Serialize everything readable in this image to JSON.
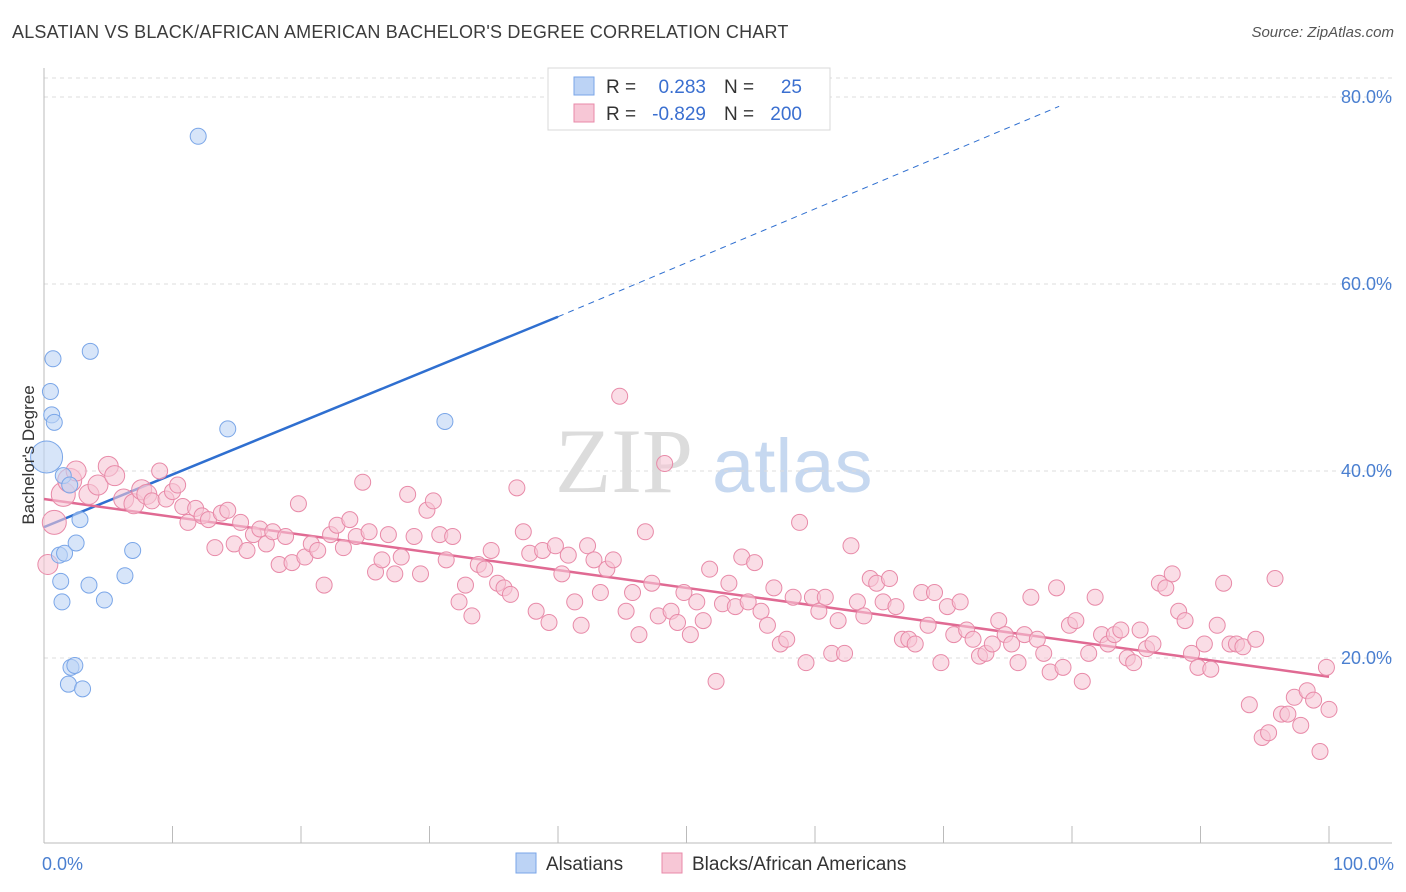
{
  "title": "ALSATIAN VS BLACK/AFRICAN AMERICAN BACHELOR'S DEGREE CORRELATION CHART",
  "source": "Source: ZipAtlas.com",
  "watermark": {
    "zip": "ZIP",
    "atlas": "atlas"
  },
  "legend": {
    "series1": {
      "r_label": "R =",
      "r_value": "0.283",
      "n_label": "N =",
      "n_value": "25"
    },
    "series2": {
      "r_label": "R =",
      "r_value": "-0.829",
      "n_label": "N =",
      "n_value": "200"
    }
  },
  "colors": {
    "blue": "#7aa6e8",
    "blue_fill": "#bcd3f5",
    "blue_line": "#2f6fd0",
    "pink": "#e88aa8",
    "pink_fill": "#f7c7d6",
    "pink_line": "#e06a93"
  },
  "chart_data": {
    "type": "scatter",
    "title": "ALSATIAN VS BLACK/AFRICAN AMERICAN BACHELOR'S DEGREE CORRELATION CHART",
    "xlabel": "",
    "ylabel": "Bachelor's Degree",
    "xlim": [
      0,
      100
    ],
    "ylim": [
      0,
      82
    ],
    "x_tick_labels": [
      "0.0%",
      "100.0%"
    ],
    "y_ticks": [
      20,
      40,
      60,
      80
    ],
    "y_tick_labels": [
      "20.0%",
      "40.0%",
      "60.0%",
      "80.0%"
    ],
    "legend_position": "bottom",
    "series": [
      {
        "name": "Alsatians",
        "trend": {
          "x0": 0,
          "y0": 34.0,
          "x1": 40,
          "y1": 56.5,
          "dash_to_x": 79,
          "dash_to_y": 79.0
        },
        "points": [
          [
            0.2,
            41.5,
            16
          ],
          [
            0.5,
            48.5,
            8
          ],
          [
            0.6,
            46,
            8
          ],
          [
            0.8,
            45.2,
            8
          ],
          [
            0.7,
            52.0,
            8
          ],
          [
            1.5,
            39.5,
            8
          ],
          [
            2.0,
            38.5,
            8
          ],
          [
            3.6,
            52.8,
            8
          ],
          [
            1.2,
            31.0,
            8
          ],
          [
            1.6,
            31.2,
            8
          ],
          [
            2.5,
            32.3,
            8
          ],
          [
            2.8,
            34.8,
            8
          ],
          [
            1.3,
            28.2,
            8
          ],
          [
            1.4,
            26.0,
            8
          ],
          [
            3.5,
            27.8,
            8
          ],
          [
            4.7,
            26.2,
            8
          ],
          [
            6.3,
            28.8,
            8
          ],
          [
            6.9,
            31.5,
            8
          ],
          [
            2.1,
            19.0,
            8
          ],
          [
            2.4,
            19.2,
            8
          ],
          [
            1.9,
            17.2,
            8
          ],
          [
            3.0,
            16.7,
            8
          ],
          [
            12.0,
            75.8,
            8
          ],
          [
            14.3,
            44.5,
            8
          ],
          [
            31.2,
            45.3,
            8
          ]
        ]
      },
      {
        "name": "Blacks/African Americans",
        "trend": {
          "x0": 0,
          "y0": 37.0,
          "x1": 100,
          "y1": 18.0
        },
        "points": [
          [
            0.3,
            30.0,
            10
          ],
          [
            0.8,
            34.5,
            12
          ],
          [
            1.5,
            37.5,
            12
          ],
          [
            2.0,
            39.0,
            12
          ],
          [
            2.5,
            40.0,
            10
          ],
          [
            3.5,
            37.5,
            10
          ],
          [
            4.2,
            38.5,
            10
          ],
          [
            5.0,
            40.5,
            10
          ],
          [
            5.5,
            39.5,
            10
          ],
          [
            6.2,
            37.0,
            10
          ],
          [
            7.0,
            36.5,
            10
          ],
          [
            7.6,
            38.0,
            10
          ],
          [
            8.0,
            37.5,
            10
          ],
          [
            8.4,
            36.8,
            8
          ],
          [
            9.0,
            40.0,
            8
          ],
          [
            9.5,
            37.0,
            8
          ],
          [
            10.0,
            37.8,
            8
          ],
          [
            10.4,
            38.5,
            8
          ],
          [
            10.8,
            36.2,
            8
          ],
          [
            11.2,
            34.5,
            8
          ],
          [
            11.8,
            36.0,
            8
          ],
          [
            12.3,
            35.2,
            8
          ],
          [
            12.8,
            34.8,
            8
          ],
          [
            13.3,
            31.8,
            8
          ],
          [
            13.8,
            35.5,
            8
          ],
          [
            14.3,
            35.8,
            8
          ],
          [
            14.8,
            32.2,
            8
          ],
          [
            15.3,
            34.5,
            8
          ],
          [
            15.8,
            31.5,
            8
          ],
          [
            16.3,
            33.2,
            8
          ],
          [
            16.8,
            33.8,
            8
          ],
          [
            17.3,
            32.2,
            8
          ],
          [
            17.8,
            33.5,
            8
          ],
          [
            18.3,
            30.0,
            8
          ],
          [
            18.8,
            33.0,
            8
          ],
          [
            19.3,
            30.2,
            8
          ],
          [
            19.8,
            36.5,
            8
          ],
          [
            20.3,
            30.8,
            8
          ],
          [
            20.8,
            32.2,
            8
          ],
          [
            21.3,
            31.5,
            8
          ],
          [
            21.8,
            27.8,
            8
          ],
          [
            22.3,
            33.2,
            8
          ],
          [
            22.8,
            34.2,
            8
          ],
          [
            23.3,
            31.8,
            8
          ],
          [
            23.8,
            34.8,
            8
          ],
          [
            24.3,
            33.0,
            8
          ],
          [
            24.8,
            38.8,
            8
          ],
          [
            25.3,
            33.5,
            8
          ],
          [
            25.8,
            29.2,
            8
          ],
          [
            26.3,
            30.5,
            8
          ],
          [
            26.8,
            33.2,
            8
          ],
          [
            27.3,
            29.0,
            8
          ],
          [
            27.8,
            30.8,
            8
          ],
          [
            28.3,
            37.5,
            8
          ],
          [
            28.8,
            33.0,
            8
          ],
          [
            29.3,
            29.0,
            8
          ],
          [
            29.8,
            35.8,
            8
          ],
          [
            30.3,
            36.8,
            8
          ],
          [
            30.8,
            33.2,
            8
          ],
          [
            31.3,
            30.5,
            8
          ],
          [
            31.8,
            33.0,
            8
          ],
          [
            32.3,
            26.0,
            8
          ],
          [
            32.8,
            27.8,
            8
          ],
          [
            33.3,
            24.5,
            8
          ],
          [
            33.8,
            30.0,
            8
          ],
          [
            34.3,
            29.5,
            8
          ],
          [
            34.8,
            31.5,
            8
          ],
          [
            35.3,
            28.0,
            8
          ],
          [
            35.8,
            27.5,
            8
          ],
          [
            36.3,
            26.8,
            8
          ],
          [
            36.8,
            38.2,
            8
          ],
          [
            37.3,
            33.5,
            8
          ],
          [
            37.8,
            31.2,
            8
          ],
          [
            38.3,
            25.0,
            8
          ],
          [
            38.8,
            31.5,
            8
          ],
          [
            39.3,
            23.8,
            8
          ],
          [
            39.8,
            32.0,
            8
          ],
          [
            40.3,
            29.0,
            8
          ],
          [
            40.8,
            31.0,
            8
          ],
          [
            41.3,
            26.0,
            8
          ],
          [
            41.8,
            23.5,
            8
          ],
          [
            42.3,
            32.0,
            8
          ],
          [
            42.8,
            30.5,
            8
          ],
          [
            43.3,
            27.0,
            8
          ],
          [
            43.8,
            29.5,
            8
          ],
          [
            44.3,
            30.5,
            8
          ],
          [
            44.8,
            48.0,
            8
          ],
          [
            45.3,
            25.0,
            8
          ],
          [
            45.8,
            27.0,
            8
          ],
          [
            46.3,
            22.5,
            8
          ],
          [
            46.8,
            33.5,
            8
          ],
          [
            47.3,
            28.0,
            8
          ],
          [
            47.8,
            24.5,
            8
          ],
          [
            48.3,
            40.8,
            8
          ],
          [
            48.8,
            25.0,
            8
          ],
          [
            49.3,
            23.8,
            8
          ],
          [
            49.8,
            27.0,
            8
          ],
          [
            50.3,
            22.5,
            8
          ],
          [
            50.8,
            26.0,
            8
          ],
          [
            51.3,
            24.0,
            8
          ],
          [
            51.8,
            29.5,
            8
          ],
          [
            52.3,
            17.5,
            8
          ],
          [
            52.8,
            25.8,
            8
          ],
          [
            53.3,
            28.0,
            8
          ],
          [
            53.8,
            25.5,
            8
          ],
          [
            54.3,
            30.8,
            8
          ],
          [
            54.8,
            26.0,
            8
          ],
          [
            55.3,
            30.2,
            8
          ],
          [
            55.8,
            25.0,
            8
          ],
          [
            56.3,
            23.5,
            8
          ],
          [
            56.8,
            27.5,
            8
          ],
          [
            57.3,
            21.5,
            8
          ],
          [
            57.8,
            22.0,
            8
          ],
          [
            58.3,
            26.5,
            8
          ],
          [
            58.8,
            34.5,
            8
          ],
          [
            59.3,
            19.5,
            8
          ],
          [
            59.8,
            26.5,
            8
          ],
          [
            60.3,
            25.0,
            8
          ],
          [
            60.8,
            26.5,
            8
          ],
          [
            61.3,
            20.5,
            8
          ],
          [
            61.8,
            24.0,
            8
          ],
          [
            62.3,
            20.5,
            8
          ],
          [
            62.8,
            32.0,
            8
          ],
          [
            63.3,
            26.0,
            8
          ],
          [
            63.8,
            24.5,
            8
          ],
          [
            64.3,
            28.5,
            8
          ],
          [
            64.8,
            28.0,
            8
          ],
          [
            65.3,
            26.0,
            8
          ],
          [
            65.8,
            28.5,
            8
          ],
          [
            66.3,
            25.5,
            8
          ],
          [
            66.8,
            22.0,
            8
          ],
          [
            67.3,
            22.0,
            8
          ],
          [
            67.8,
            21.5,
            8
          ],
          [
            68.3,
            27.0,
            8
          ],
          [
            68.8,
            23.5,
            8
          ],
          [
            69.3,
            27.0,
            8
          ],
          [
            69.8,
            19.5,
            8
          ],
          [
            70.3,
            25.5,
            8
          ],
          [
            70.8,
            22.5,
            8
          ],
          [
            71.3,
            26.0,
            8
          ],
          [
            71.8,
            23.0,
            8
          ],
          [
            72.3,
            22.0,
            8
          ],
          [
            72.8,
            20.2,
            8
          ],
          [
            73.3,
            20.5,
            8
          ],
          [
            73.8,
            21.5,
            8
          ],
          [
            74.3,
            24.0,
            8
          ],
          [
            74.8,
            22.5,
            8
          ],
          [
            75.3,
            21.5,
            8
          ],
          [
            75.8,
            19.5,
            8
          ],
          [
            76.3,
            22.5,
            8
          ],
          [
            76.8,
            26.5,
            8
          ],
          [
            77.3,
            22.0,
            8
          ],
          [
            77.8,
            20.5,
            8
          ],
          [
            78.3,
            18.5,
            8
          ],
          [
            78.8,
            27.5,
            8
          ],
          [
            79.3,
            19.0,
            8
          ],
          [
            79.8,
            23.5,
            8
          ],
          [
            80.3,
            24.0,
            8
          ],
          [
            80.8,
            17.5,
            8
          ],
          [
            81.3,
            20.5,
            8
          ],
          [
            81.8,
            26.5,
            8
          ],
          [
            82.3,
            22.5,
            8
          ],
          [
            82.8,
            21.5,
            8
          ],
          [
            83.3,
            22.5,
            8
          ],
          [
            83.8,
            23.0,
            8
          ],
          [
            84.3,
            20.0,
            8
          ],
          [
            84.8,
            19.5,
            8
          ],
          [
            85.3,
            23.0,
            8
          ],
          [
            85.8,
            21.0,
            8
          ],
          [
            86.3,
            21.5,
            8
          ],
          [
            86.8,
            28.0,
            8
          ],
          [
            87.3,
            27.5,
            8
          ],
          [
            87.8,
            29.0,
            8
          ],
          [
            88.3,
            25.0,
            8
          ],
          [
            88.8,
            24.0,
            8
          ],
          [
            89.3,
            20.5,
            8
          ],
          [
            89.8,
            19.0,
            8
          ],
          [
            90.3,
            21.5,
            8
          ],
          [
            90.8,
            18.8,
            8
          ],
          [
            91.3,
            23.5,
            8
          ],
          [
            91.8,
            28.0,
            8
          ],
          [
            92.3,
            21.5,
            8
          ],
          [
            92.8,
            21.5,
            8
          ],
          [
            93.3,
            21.2,
            8
          ],
          [
            93.8,
            15.0,
            8
          ],
          [
            94.3,
            22.0,
            8
          ],
          [
            94.8,
            11.5,
            8
          ],
          [
            95.3,
            12.0,
            8
          ],
          [
            95.8,
            28.5,
            8
          ],
          [
            96.3,
            14.0,
            8
          ],
          [
            96.8,
            14.0,
            8
          ],
          [
            97.3,
            15.8,
            8
          ],
          [
            97.8,
            12.8,
            8
          ],
          [
            98.3,
            16.5,
            8
          ],
          [
            98.8,
            15.5,
            8
          ],
          [
            99.3,
            10.0,
            8
          ],
          [
            99.8,
            19.0,
            8
          ],
          [
            100.0,
            14.5,
            8
          ]
        ]
      }
    ]
  },
  "bottom_legend": {
    "series1": "Alsatians",
    "series2": "Blacks/African Americans"
  }
}
